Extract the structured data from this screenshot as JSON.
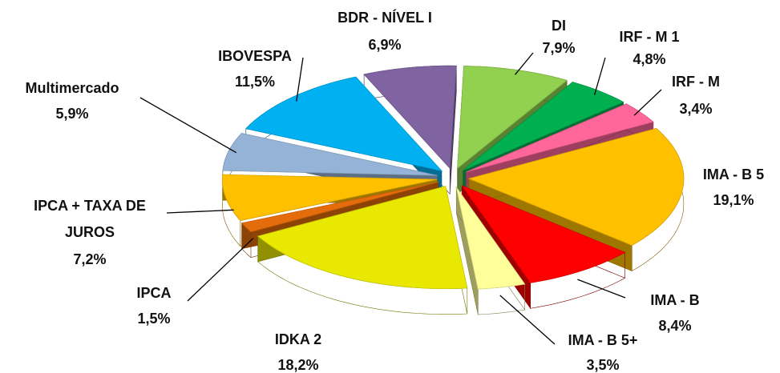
{
  "chart_data": {
    "type": "pie",
    "categories": [
      "DI",
      "IRF - M 1",
      "IRF - M",
      "IMA - B 5",
      "IMA - B",
      "IMA - B 5+",
      "IDKA 2",
      "IPCA",
      "IPCA + TAXA DE JUROS",
      "Multimercado",
      "IBOVESPA",
      "BDR - NÍVEL I"
    ],
    "values": [
      7.9,
      4.8,
      3.4,
      19.1,
      8.4,
      3.5,
      18.2,
      1.5,
      7.2,
      5.9,
      11.5,
      6.9
    ],
    "value_labels": [
      "7,9%",
      "4,8%",
      "3,4%",
      "19,1%",
      "8,4%",
      "3,5%",
      "18,2%",
      "1,5%",
      "7,2%",
      "5,9%",
      "11,5%",
      "6,9%"
    ],
    "colors": [
      "#92d050",
      "#00b050",
      "#ff6699",
      "#ffc000",
      "#ff0000",
      "#ffff99",
      "#e8e800",
      "#e46c0a",
      "#ffc000",
      "#95b3d7",
      "#00b0f0",
      "#8064a2"
    ]
  }
}
